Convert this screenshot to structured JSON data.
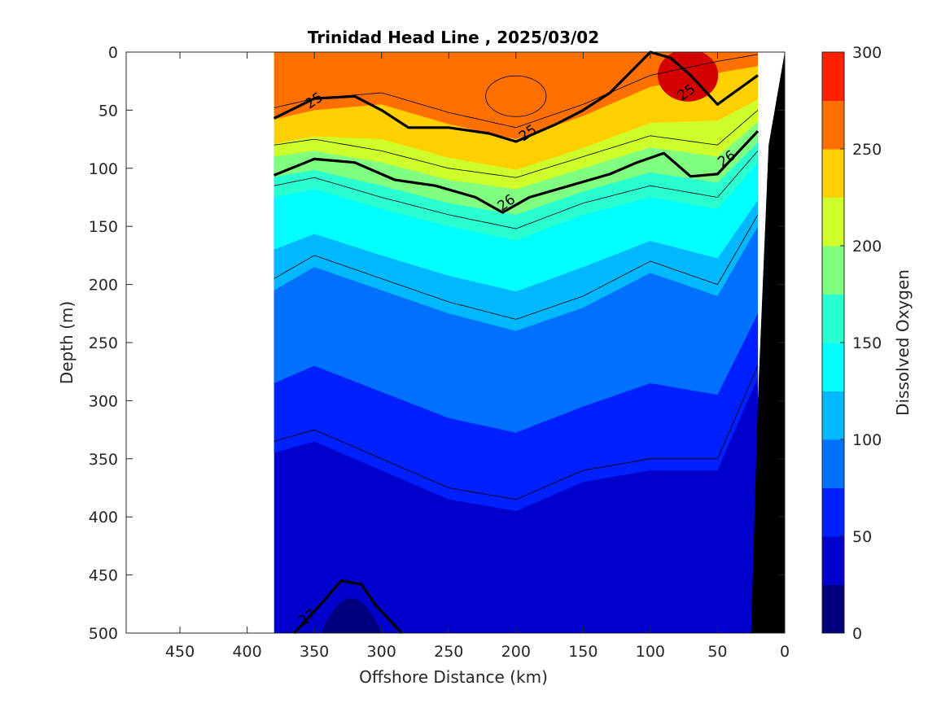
{
  "chart_data": {
    "type": "heatmap",
    "subtype": "filled-contour section",
    "title": "Trinidad Head Line , 2025/03/02",
    "xlabel": "Offshore Distance (km)",
    "ylabel": "Depth (m)",
    "xlim": [
      490,
      0
    ],
    "ylim": [
      500,
      0
    ],
    "x_reversed": true,
    "y_reversed": true,
    "xticks": [
      450,
      400,
      350,
      300,
      250,
      200,
      150,
      100,
      50,
      0
    ],
    "yticks": [
      0,
      50,
      100,
      150,
      200,
      250,
      300,
      350,
      400,
      450,
      500
    ],
    "data_extent_km": [
      20,
      380
    ],
    "colorbar": {
      "label": "Dissolved Oxygen",
      "range": [
        0,
        300
      ],
      "ticks": [
        0,
        50,
        100,
        150,
        200,
        250,
        300
      ],
      "levels": [
        0,
        25,
        50,
        75,
        100,
        125,
        150,
        175,
        200,
        225,
        250,
        275,
        300
      ],
      "colors": [
        "#00007f",
        "#0000cd",
        "#0020ff",
        "#0070ff",
        "#00b8ff",
        "#00ffff",
        "#2affcf",
        "#80ff80",
        "#cfff2a",
        "#ffd000",
        "#ff7000",
        "#ff2000",
        "#d40000"
      ]
    },
    "oxygen_isolines": {
      "distance_km": [
        380,
        350,
        300,
        250,
        200,
        150,
        100,
        50,
        20
      ],
      "depth_250": [
        58,
        50,
        45,
        62,
        75,
        55,
        30,
        18,
        12
      ],
      "depth_200": [
        90,
        85,
        95,
        110,
        118,
        100,
        82,
        90,
        60
      ],
      "depth_150": [
        125,
        118,
        135,
        150,
        162,
        140,
        125,
        135,
        95
      ],
      "depth_100": [
        205,
        185,
        205,
        225,
        240,
        220,
        190,
        210,
        150
      ],
      "depth_50": [
        345,
        335,
        360,
        385,
        395,
        370,
        360,
        360,
        280
      ],
      "depth_25_core_km": [
        345,
        300
      ]
    },
    "density_contours": [
      {
        "label": "25",
        "distance_km": [
          380,
          350,
          320,
          300,
          280,
          250,
          220,
          200,
          170,
          150,
          130,
          100,
          85,
          70,
          50,
          20
        ],
        "depth_m": [
          57,
          40,
          38,
          50,
          65,
          65,
          70,
          77,
          62,
          50,
          35,
          0,
          5,
          20,
          45,
          20
        ]
      },
      {
        "label": "26",
        "distance_km": [
          380,
          350,
          320,
          290,
          260,
          230,
          210,
          190,
          160,
          130,
          110,
          90,
          70,
          50,
          20
        ],
        "depth_m": [
          106,
          92,
          95,
          110,
          115,
          125,
          138,
          125,
          115,
          105,
          95,
          87,
          107,
          105,
          68
        ]
      },
      {
        "label": "27",
        "distance_km": [
          365,
          345,
          330,
          315,
          305,
          285
        ],
        "depth_m": [
          500,
          475,
          455,
          458,
          475,
          500
        ]
      }
    ],
    "contour_labels": [
      {
        "text": "25",
        "x": 350,
        "y": 42
      },
      {
        "text": "25",
        "x": 191,
        "y": 70
      },
      {
        "text": "25",
        "x": 73,
        "y": 35
      },
      {
        "text": "26",
        "x": 207,
        "y": 130
      },
      {
        "text": "26",
        "x": 43,
        "y": 92
      },
      {
        "text": "27",
        "x": 355,
        "y": 487
      }
    ],
    "bathymetry_km": {
      "surface": 0,
      "bottom": 25
    }
  }
}
